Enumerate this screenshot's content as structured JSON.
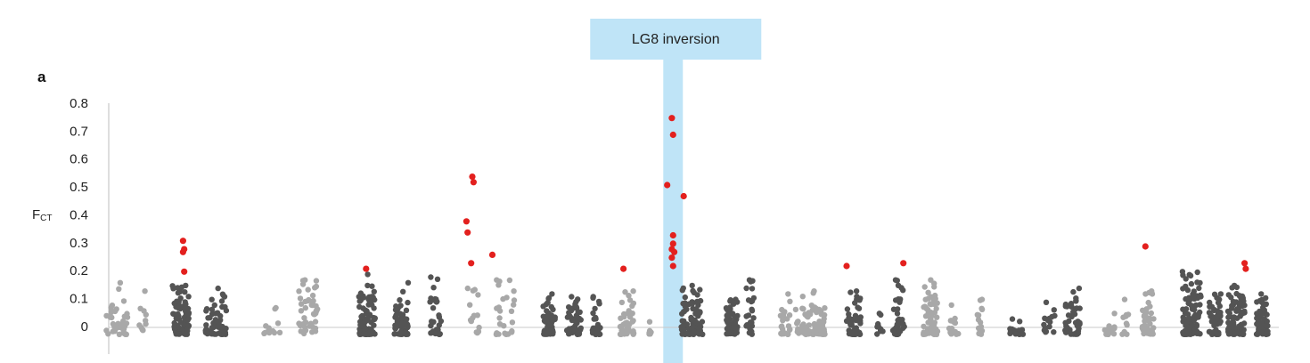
{
  "chart_data": {
    "type": "scatter",
    "panel_label": "a",
    "ylabel": "F",
    "ylabel_subscript": "CT",
    "yticks": [
      0,
      0.1,
      0.2,
      0.3,
      0.4,
      0.5,
      0.6,
      0.7,
      0.8
    ],
    "ytick_labels": [
      "0",
      "0.1",
      "0.2",
      "0.3",
      "0.4",
      "0.5",
      "0.6",
      "0.7",
      "0.8"
    ],
    "ylim": [
      -0.05,
      0.8
    ],
    "xlim": [
      0,
      100
    ],
    "grid": false,
    "colors": {
      "light": "#a8a8a8",
      "dark": "#545454",
      "outlier": "#e3201e",
      "highlight": "#bfe4f7"
    },
    "annotation": {
      "text": "LG8 inversion",
      "x_center": 48.7
    },
    "groups": [
      {
        "center": 1.6,
        "width": 1.8,
        "color": "light",
        "n": 40,
        "max": 0.16
      },
      {
        "center": 3.9,
        "width": 0.8,
        "color": "light",
        "n": 10,
        "max": 0.13
      },
      {
        "center": 7.0,
        "width": 1.4,
        "color": "dark",
        "n": 70,
        "max": 0.15
      },
      {
        "center": 10.0,
        "width": 1.8,
        "color": "dark",
        "n": 60,
        "max": 0.14
      },
      {
        "center": 14.6,
        "width": 1.6,
        "color": "light",
        "n": 12,
        "max": 0.07
      },
      {
        "center": 17.8,
        "width": 1.6,
        "color": "light",
        "n": 45,
        "max": 0.17
      },
      {
        "center": 22.8,
        "width": 1.4,
        "color": "dark",
        "n": 80,
        "max": 0.19
      },
      {
        "center": 25.7,
        "width": 1.2,
        "color": "dark",
        "n": 50,
        "max": 0.16
      },
      {
        "center": 28.6,
        "width": 1.0,
        "color": "dark",
        "n": 30,
        "max": 0.18
      },
      {
        "center": 31.8,
        "width": 1.0,
        "color": "light",
        "n": 15,
        "max": 0.14
      },
      {
        "center": 34.5,
        "width": 1.6,
        "color": "light",
        "n": 25,
        "max": 0.17
      },
      {
        "center": 38.2,
        "width": 1.0,
        "color": "dark",
        "n": 55,
        "max": 0.12
      },
      {
        "center": 40.3,
        "width": 1.2,
        "color": "dark",
        "n": 45,
        "max": 0.11
      },
      {
        "center": 42.2,
        "width": 0.7,
        "color": "dark",
        "n": 25,
        "max": 0.11
      },
      {
        "center": 44.8,
        "width": 1.2,
        "color": "light",
        "n": 40,
        "max": 0.13
      },
      {
        "center": 46.7,
        "width": 0.4,
        "color": "light",
        "n": 6,
        "max": 0.02
      },
      {
        "center": 50.3,
        "width": 1.8,
        "color": "dark",
        "n": 90,
        "max": 0.15
      },
      {
        "center": 53.7,
        "width": 1.0,
        "color": "dark",
        "n": 50,
        "max": 0.1
      },
      {
        "center": 55.2,
        "width": 0.7,
        "color": "dark",
        "n": 25,
        "max": 0.17
      },
      {
        "center": 58.2,
        "width": 0.8,
        "color": "light",
        "n": 25,
        "max": 0.12
      },
      {
        "center": 60.3,
        "width": 2.6,
        "color": "light",
        "n": 80,
        "max": 0.13
      },
      {
        "center": 64.0,
        "width": 1.2,
        "color": "dark",
        "n": 45,
        "max": 0.13
      },
      {
        "center": 66.2,
        "width": 0.6,
        "color": "dark",
        "n": 12,
        "max": 0.05
      },
      {
        "center": 67.8,
        "width": 1.0,
        "color": "dark",
        "n": 35,
        "max": 0.17
      },
      {
        "center": 70.5,
        "width": 1.2,
        "color": "light",
        "n": 70,
        "max": 0.17
      },
      {
        "center": 72.5,
        "width": 0.9,
        "color": "light",
        "n": 15,
        "max": 0.08
      },
      {
        "center": 74.8,
        "width": 0.7,
        "color": "light",
        "n": 15,
        "max": 0.1
      },
      {
        "center": 77.8,
        "width": 1.2,
        "color": "dark",
        "n": 20,
        "max": 0.03
      },
      {
        "center": 80.6,
        "width": 1.0,
        "color": "dark",
        "n": 15,
        "max": 0.09
      },
      {
        "center": 82.5,
        "width": 1.4,
        "color": "dark",
        "n": 45,
        "max": 0.14
      },
      {
        "center": 85.6,
        "width": 1.0,
        "color": "light",
        "n": 12,
        "max": 0.05
      },
      {
        "center": 87.0,
        "width": 0.6,
        "color": "light",
        "n": 10,
        "max": 0.1
      },
      {
        "center": 88.9,
        "width": 1.0,
        "color": "light",
        "n": 40,
        "max": 0.13
      },
      {
        "center": 92.6,
        "width": 1.6,
        "color": "dark",
        "n": 90,
        "max": 0.2
      },
      {
        "center": 94.6,
        "width": 1.0,
        "color": "dark",
        "n": 50,
        "max": 0.12
      },
      {
        "center": 96.4,
        "width": 1.4,
        "color": "dark",
        "n": 90,
        "max": 0.15
      },
      {
        "center": 98.6,
        "width": 1.0,
        "color": "dark",
        "n": 60,
        "max": 0.12
      }
    ],
    "outliers": [
      {
        "x": 7.2,
        "y": 0.31
      },
      {
        "x": 7.3,
        "y": 0.28
      },
      {
        "x": 7.2,
        "y": 0.27
      },
      {
        "x": 7.3,
        "y": 0.2
      },
      {
        "x": 22.7,
        "y": 0.21
      },
      {
        "x": 31.2,
        "y": 0.38
      },
      {
        "x": 31.3,
        "y": 0.34
      },
      {
        "x": 31.7,
        "y": 0.54
      },
      {
        "x": 31.8,
        "y": 0.52
      },
      {
        "x": 31.6,
        "y": 0.23
      },
      {
        "x": 33.4,
        "y": 0.26
      },
      {
        "x": 44.5,
        "y": 0.21
      },
      {
        "x": 48.2,
        "y": 0.51
      },
      {
        "x": 48.6,
        "y": 0.75
      },
      {
        "x": 48.7,
        "y": 0.69
      },
      {
        "x": 49.6,
        "y": 0.47
      },
      {
        "x": 48.7,
        "y": 0.33
      },
      {
        "x": 48.7,
        "y": 0.3
      },
      {
        "x": 48.6,
        "y": 0.28
      },
      {
        "x": 48.8,
        "y": 0.27
      },
      {
        "x": 48.6,
        "y": 0.25
      },
      {
        "x": 48.7,
        "y": 0.22
      },
      {
        "x": 63.4,
        "y": 0.22
      },
      {
        "x": 68.2,
        "y": 0.23
      },
      {
        "x": 88.7,
        "y": 0.29
      },
      {
        "x": 97.1,
        "y": 0.23
      },
      {
        "x": 97.2,
        "y": 0.21
      }
    ]
  }
}
